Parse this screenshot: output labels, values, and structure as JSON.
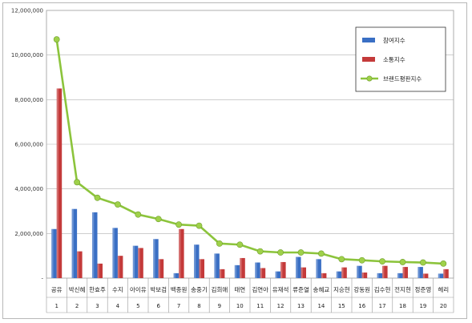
{
  "chart_data": {
    "type": "bar",
    "categories": [
      "공유",
      "박신혜",
      "한효주",
      "수지",
      "아이유",
      "박보검",
      "백종원",
      "송중기",
      "김희애",
      "태연",
      "김연아",
      "유재석",
      "류준열",
      "송혜교",
      "지승현",
      "강동원",
      "김수현",
      "전지현",
      "정준영",
      "헤리"
    ],
    "category_numbers": [
      "1",
      "2",
      "3",
      "4",
      "5",
      "6",
      "7",
      "8",
      "9",
      "10",
      "11",
      "12",
      "13",
      "14",
      "15",
      "16",
      "17",
      "18",
      "19",
      "20"
    ],
    "ylim": [
      0,
      12000000
    ],
    "yticks": [
      0,
      2000000,
      4000000,
      6000000,
      8000000,
      10000000,
      12000000
    ],
    "ytick_labels": [
      "-",
      "2,000,000",
      "4,000,000",
      "6,000,000",
      "8,000,000",
      "10,000,000",
      "12,000,000"
    ],
    "grid": true,
    "legend_position": "top-right",
    "series": [
      {
        "name": "참여지수",
        "kind": "bar",
        "color": "#3a6fc4",
        "values": [
          2200000,
          3100000,
          2950000,
          2250000,
          1450000,
          1750000,
          220000,
          1500000,
          1100000,
          580000,
          700000,
          300000,
          950000,
          850000,
          300000,
          550000,
          220000,
          220000,
          500000,
          200000
        ]
      },
      {
        "name": "소통지수",
        "kind": "bar",
        "color": "#c43a3a",
        "values": [
          8500000,
          1200000,
          650000,
          1000000,
          1350000,
          850000,
          2200000,
          850000,
          400000,
          900000,
          450000,
          720000,
          480000,
          220000,
          480000,
          250000,
          550000,
          500000,
          200000,
          400000
        ]
      },
      {
        "name": "브랜드평판지수",
        "kind": "line",
        "color": "#8cc43c",
        "values": [
          10700000,
          4300000,
          3600000,
          3300000,
          2850000,
          2650000,
          2400000,
          2350000,
          1550000,
          1500000,
          1200000,
          1150000,
          1150000,
          1100000,
          850000,
          800000,
          750000,
          720000,
          700000,
          650000
        ]
      }
    ]
  }
}
